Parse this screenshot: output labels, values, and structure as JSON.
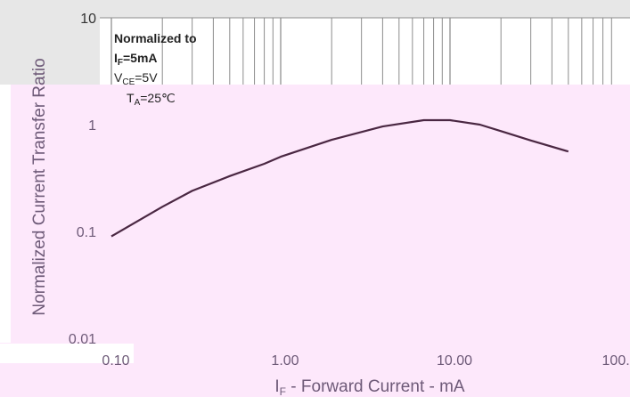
{
  "chart_data": {
    "type": "line",
    "title": "",
    "xlabel": "IF - Forward Current - mA",
    "ylabel": "Normalized Current Transfer Ratio",
    "x_scale": "log",
    "y_scale": "log",
    "xlim": [
      0.1,
      100
    ],
    "ylim": [
      0.01,
      10
    ],
    "x_tick_labels": [
      "0.10",
      "1.00",
      "10.00",
      "100.00"
    ],
    "y_tick_labels": [
      "0.01",
      "0.1",
      "1",
      "10"
    ],
    "grid": true,
    "series": [
      {
        "x": [
          0.1,
          0.2,
          0.3,
          0.5,
          0.8,
          1.0,
          2.0,
          4.0,
          7.0,
          10.0,
          15.0,
          20.0,
          30.0,
          50.0
        ],
        "y": [
          0.09,
          0.17,
          0.24,
          0.33,
          0.43,
          0.5,
          0.72,
          0.96,
          1.1,
          1.1,
          1.0,
          0.87,
          0.71,
          0.56
        ]
      }
    ],
    "annotations": [
      "Normalized to",
      "IF=5mA",
      "VCE=5V",
      "TA=25℃"
    ],
    "colors": {
      "line": "#4a2742",
      "overlay": "#fde8fb",
      "annotation_text": "#222222",
      "lower_text": "#6e5a78",
      "upper_text": "#333333"
    }
  }
}
